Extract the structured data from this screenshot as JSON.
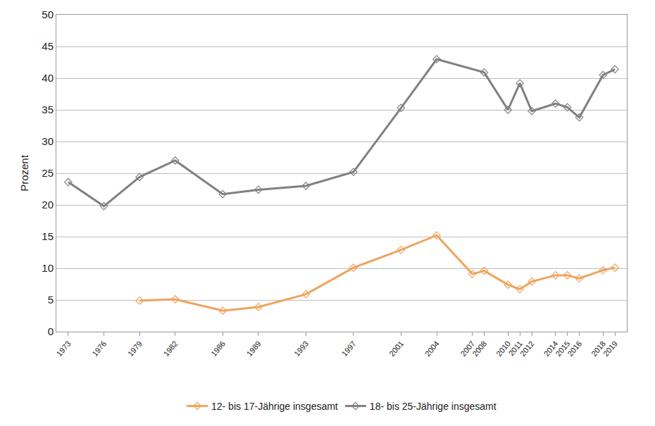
{
  "chart_data": {
    "type": "line",
    "y_label": "Prozent",
    "xlim": [
      1972,
      2020
    ],
    "xticks": [
      1973,
      1976,
      1979,
      1982,
      1986,
      1989,
      1993,
      1997,
      2001,
      2004,
      2007,
      2008,
      2010,
      2011,
      2012,
      2014,
      2015,
      2016,
      2018,
      2019
    ],
    "ylim": [
      0,
      50
    ],
    "yticks": [
      0,
      5,
      10,
      15,
      20,
      25,
      30,
      35,
      40,
      45,
      50
    ],
    "grid": true,
    "legend": "bottom",
    "marker": "diamond-open",
    "series": [
      {
        "name": "12- bis 17-Jährige insgesamt",
        "color": "#f0a35e",
        "x": [
          1979,
          1982,
          1986,
          1989,
          1993,
          1997,
          2001,
          2004,
          2007,
          2008,
          2010,
          2011,
          2012,
          2014,
          2015,
          2016,
          2018,
          2019
        ],
        "values": [
          4.9,
          5.1,
          3.3,
          3.9,
          5.9,
          10.1,
          12.9,
          15.2,
          9.1,
          9.6,
          7.4,
          6.7,
          7.9,
          8.9,
          8.9,
          8.4,
          9.7,
          10.1
        ]
      },
      {
        "name": "18- bis 25-Jährige insgesamt",
        "color": "#808080",
        "x": [
          1973,
          1976,
          1979,
          1982,
          1986,
          1989,
          1993,
          1997,
          2001,
          2004,
          2008,
          2010,
          2011,
          2012,
          2014,
          2015,
          2016,
          2018,
          2019
        ],
        "values": [
          23.6,
          19.8,
          24.4,
          27.0,
          21.7,
          22.4,
          23.0,
          25.2,
          35.3,
          43.0,
          40.9,
          35.0,
          39.2,
          34.8,
          36.0,
          35.4,
          33.8,
          40.5,
          41.4
        ]
      }
    ]
  }
}
